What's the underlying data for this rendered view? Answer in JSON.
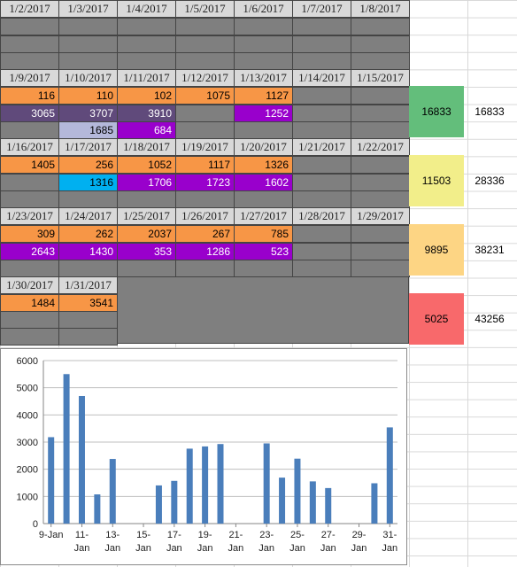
{
  "week1": {
    "headers": [
      "1/2/2017",
      "1/3/2017",
      "1/4/2017",
      "1/5/2017",
      "1/6/2017",
      "1/7/2017",
      "1/8/2017"
    ]
  },
  "week2": {
    "headers": [
      "1/9/2017",
      "1/10/2017",
      "1/11/2017",
      "1/12/2017",
      "1/13/2017",
      "1/14/2017",
      "1/15/2017"
    ],
    "row1": [
      "116",
      "110",
      "102",
      "1075",
      "1127"
    ],
    "row2": [
      "3065",
      "3707",
      "3910",
      "",
      "1252"
    ],
    "row3": [
      "",
      "1685",
      "684"
    ],
    "summary": "16833",
    "total": "16833"
  },
  "week3": {
    "headers": [
      "1/16/2017",
      "1/17/2017",
      "1/18/2017",
      "1/19/2017",
      "1/20/2017",
      "1/21/2017",
      "1/22/2017"
    ],
    "row1": [
      "1405",
      "256",
      "1052",
      "1117",
      "1326"
    ],
    "row2": [
      "",
      "1316",
      "1706",
      "1723",
      "1602"
    ],
    "summary": "11503",
    "total": "28336"
  },
  "week4": {
    "headers": [
      "1/23/2017",
      "1/24/2017",
      "1/25/2017",
      "1/26/2017",
      "1/27/2017",
      "1/28/2017",
      "1/29/2017"
    ],
    "row1": [
      "309",
      "262",
      "2037",
      "267",
      "785"
    ],
    "row2": [
      "2643",
      "1430",
      "353",
      "1286",
      "523"
    ],
    "summary": "9895",
    "total": "38231"
  },
  "week5": {
    "headers": [
      "1/30/2017",
      "1/31/2017"
    ],
    "row1": [
      "1484",
      "3541"
    ],
    "summary": "5025",
    "total": "43256"
  },
  "colors": {
    "green": "#63be7b",
    "yellow": "#f2ee8a",
    "orange_light": "#fdd584",
    "red": "#f8696b"
  },
  "chart_data": {
    "type": "bar",
    "title": "",
    "xlabel": "",
    "ylabel": "",
    "ylim": [
      0,
      6000
    ],
    "yticks": [
      "0",
      "1000",
      "2000",
      "3000",
      "4000",
      "5000",
      "6000"
    ],
    "xtick_labels": [
      "9-Jan",
      "11-\nJan",
      "13-\nJan",
      "15-\nJan",
      "17-\nJan",
      "19-\nJan",
      "21-\nJan",
      "23-\nJan",
      "25-\nJan",
      "27-\nJan",
      "29-\nJan",
      "31-\nJan"
    ],
    "categories": [
      "9-Jan",
      "10-Jan",
      "11-Jan",
      "12-Jan",
      "13-Jan",
      "14-Jan",
      "15-Jan",
      "16-Jan",
      "17-Jan",
      "18-Jan",
      "19-Jan",
      "20-Jan",
      "21-Jan",
      "22-Jan",
      "23-Jan",
      "24-Jan",
      "25-Jan",
      "26-Jan",
      "27-Jan",
      "28-Jan",
      "29-Jan",
      "30-Jan",
      "31-Jan"
    ],
    "values": [
      3181,
      5502,
      4696,
      1075,
      2379,
      0,
      0,
      1405,
      1572,
      2758,
      2840,
      2928,
      0,
      0,
      2952,
      1692,
      2390,
      1553,
      1308,
      0,
      0,
      1484,
      3541
    ],
    "color": "#4a7ebb",
    "grid": true
  }
}
